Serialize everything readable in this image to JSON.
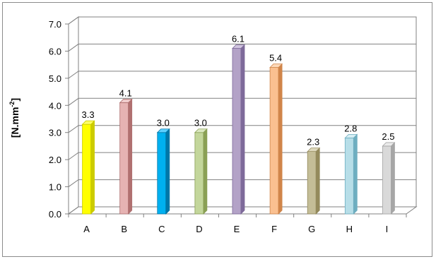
{
  "chart_data": {
    "type": "bar",
    "title": "",
    "xlabel": "",
    "ylabel": "[N.mm",
    "ylabel_superscript": "-2",
    "ylabel_suffix": "]",
    "categories": [
      "A",
      "B",
      "C",
      "D",
      "E",
      "F",
      "G",
      "H",
      "I"
    ],
    "values": [
      3.3,
      4.1,
      3.0,
      3.0,
      6.1,
      5.4,
      2.3,
      2.8,
      2.5
    ],
    "value_labels": [
      "3.3",
      "4.1",
      "3.0",
      "3.0",
      "6.1",
      "5.4",
      "2.3",
      "2.8",
      "2.5"
    ],
    "ylim": [
      0,
      7
    ],
    "yticks": [
      "0.0",
      "1.0",
      "2.0",
      "3.0",
      "4.0",
      "5.0",
      "6.0",
      "7.0"
    ],
    "grid": true,
    "legend": "none",
    "bar_colors": [
      {
        "front": "#ffff00",
        "side": "#cccc00",
        "top": "#ffff66"
      },
      {
        "front": "#e6b3b3",
        "side": "#b07070",
        "top": "#f0cccc"
      },
      {
        "front": "#00b0f0",
        "side": "#0077a8",
        "top": "#5fd0ff"
      },
      {
        "front": "#c3d69b",
        "side": "#8aa055",
        "top": "#dbe8c0"
      },
      {
        "front": "#b3a2c7",
        "side": "#7e6a9a",
        "top": "#d0c4de"
      },
      {
        "front": "#fac090",
        "side": "#d0854a",
        "top": "#fcd8b8"
      },
      {
        "front": "#c4bd97",
        "side": "#948a5c",
        "top": "#dcd7bb"
      },
      {
        "front": "#b7dee8",
        "side": "#6eaec0",
        "top": "#d6eef4"
      },
      {
        "front": "#d9d9d9",
        "side": "#a6a6a6",
        "top": "#ebebeb"
      }
    ]
  }
}
